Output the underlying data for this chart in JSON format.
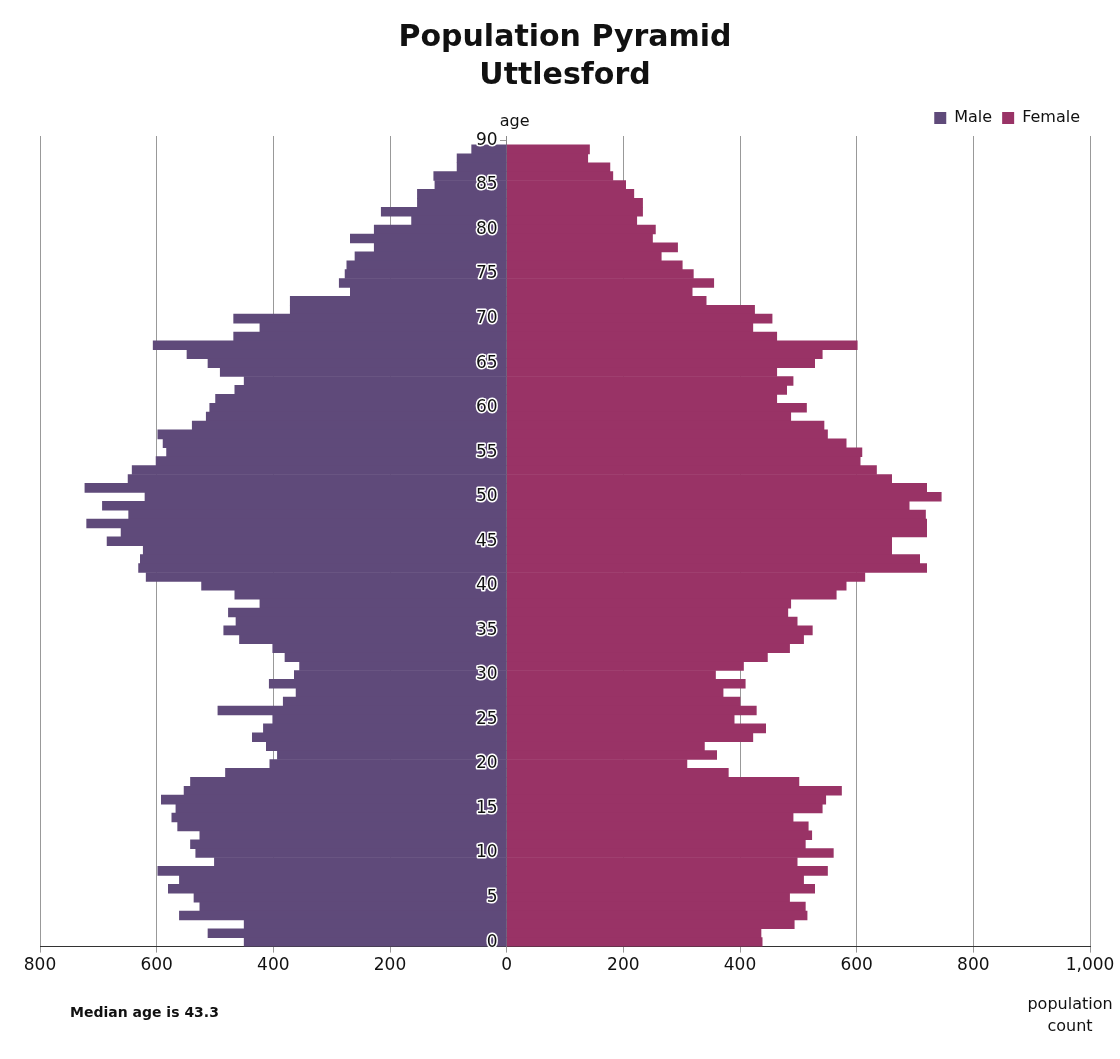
{
  "chart_data": {
    "type": "bar",
    "orientation": "horizontal",
    "stacked": true,
    "title": "Population Pyramid",
    "subtitle": "Uttlesford",
    "ylabel": "age",
    "xlabel": "population count",
    "annotations": [
      "Median age is 43.3"
    ],
    "categories": [
      "90",
      null,
      null,
      null,
      null,
      "85",
      null,
      null,
      null,
      null,
      "80",
      null,
      null,
      null,
      null,
      "75",
      null,
      null,
      null,
      null,
      "70",
      null,
      null,
      null,
      null,
      "65",
      null,
      null,
      null,
      null,
      "60",
      null,
      null,
      null,
      null,
      "55",
      null,
      null,
      null,
      null,
      "50",
      null,
      null,
      null,
      null,
      "45",
      null,
      null,
      null,
      null,
      "40",
      null,
      null,
      null,
      null,
      "35",
      null,
      null,
      null,
      null,
      "30",
      null,
      null,
      null,
      null,
      "25",
      null,
      null,
      null,
      null,
      "20",
      null,
      null,
      null,
      null,
      "15",
      null,
      null,
      null,
      null,
      "10",
      null,
      null,
      null,
      null,
      "5",
      null,
      null,
      null,
      null,
      "0"
    ],
    "series": [
      {
        "name": "Male",
        "color": "#5f4a7a",
        "values": [
          null,
          -60,
          -85,
          -85,
          -125,
          -123,
          -153,
          -153,
          -215,
          -163,
          -227,
          -268,
          -227,
          -260,
          -274,
          -277,
          -287,
          -268,
          -371,
          -371,
          -468,
          -423,
          -468,
          -606,
          -548,
          -512,
          -491,
          -450,
          -466,
          -499,
          -509,
          -515,
          -539,
          -598,
          -589,
          -583,
          -601,
          -642,
          -649,
          -723,
          -620,
          -693,
          -648,
          -720,
          -661,
          -685,
          -623,
          -628,
          -631,
          -618,
          -523,
          -466,
          -423,
          -477,
          -464,
          -485,
          -458,
          -401,
          -380,
          -355,
          -364,
          -407,
          -361,
          -383,
          -495,
          -401,
          -417,
          -436,
          -412,
          -393,
          -406,
          -482,
          -542,
          -553,
          -592,
          -567,
          -574,
          -564,
          -526,
          -542,
          -533,
          -501,
          -598,
          -561,
          -580,
          -536,
          -526,
          -561,
          -450,
          -512,
          -450
        ]
      },
      {
        "name": "Female",
        "color": "#993366",
        "values": [
          null,
          142,
          139,
          177,
          182,
          204,
          218,
          233,
          233,
          223,
          255,
          250,
          293,
          265,
          301,
          320,
          355,
          318,
          342,
          425,
          455,
          422,
          463,
          601,
          541,
          528,
          463,
          491,
          480,
          463,
          514,
          487,
          544,
          550,
          582,
          609,
          606,
          634,
          660,
          720,
          745,
          690,
          718,
          720,
          720,
          660,
          660,
          708,
          720,
          614,
          582,
          565,
          487,
          482,
          498,
          524,
          509,
          485,
          447,
          406,
          358,
          409,
          371,
          400,
          428,
          390,
          444,
          422,
          339,
          360,
          309,
          380,
          501,
          574,
          547,
          541,
          491,
          517,
          523,
          512,
          560,
          498,
          550,
          509,
          528,
          485,
          512,
          515,
          493,
          436,
          438
        ]
      }
    ],
    "xlim": [
      -800,
      1000
    ],
    "xticks": [
      {
        "value": -800,
        "label": "800"
      },
      {
        "value": -600,
        "label": "600"
      },
      {
        "value": -400,
        "label": "400"
      },
      {
        "value": -200,
        "label": "200"
      },
      0,
      200,
      400,
      600,
      800,
      {
        "value": 1000,
        "label": "1,000"
      }
    ],
    "grid": "x",
    "legend": "top right"
  }
}
